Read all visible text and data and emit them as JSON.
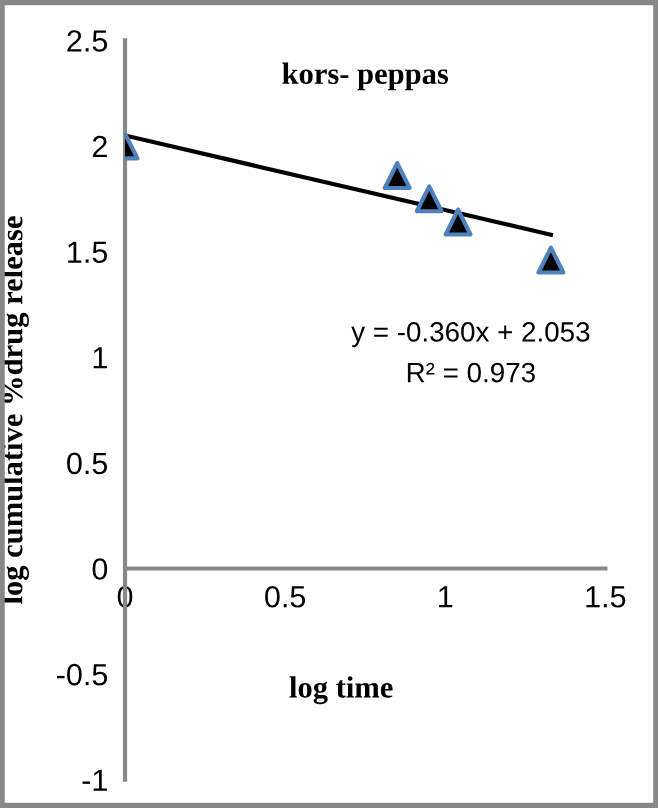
{
  "chart_data": {
    "type": "scatter",
    "title": "kors- peppas",
    "xlabel": "log time",
    "ylabel": "log cumulative %drug release",
    "x": [
      0,
      0.85,
      0.95,
      1.04,
      1.33
    ],
    "series": [
      {
        "color": "#000000",
        "values": [
          2.0,
          1.86,
          1.75,
          1.64,
          1.46
        ],
        "marker": "triangle"
      },
      {
        "type": "line",
        "color": "#000000",
        "x": [
          0,
          1.33
        ],
        "values": [
          2.05,
          1.58
        ],
        "marker": "none",
        "line_style": "solid"
      }
    ],
    "annotations": [
      "y = -0.360x + 2.053",
      "R² = 0.973"
    ],
    "xlim": [
      0,
      1.5
    ],
    "xticks": [
      0,
      0.5,
      1,
      1.5
    ],
    "ylim": [
      -1,
      2.5
    ],
    "yticks": [
      -1,
      -0.5,
      0,
      0.5,
      1,
      1.5,
      2,
      2.5
    ],
    "grid": false,
    "legend": false
  }
}
